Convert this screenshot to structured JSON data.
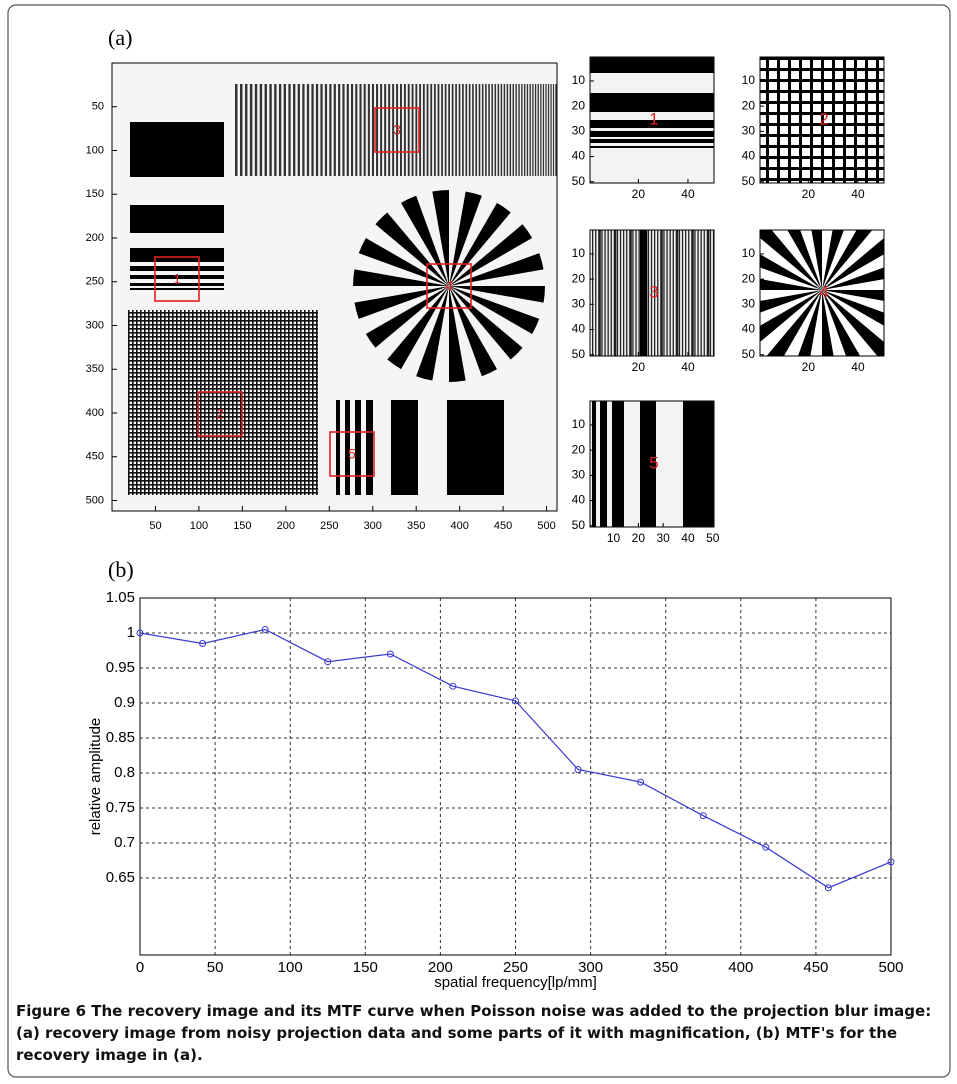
{
  "panel_a": {
    "label": "(a)",
    "main": {
      "xlim": [
        0,
        512
      ],
      "ylim": [
        0,
        512
      ],
      "xticks": [
        50,
        100,
        150,
        200,
        250,
        300,
        350,
        400,
        450,
        500
      ],
      "yticks": [
        50,
        100,
        150,
        200,
        250,
        300,
        350,
        400,
        450,
        500
      ],
      "boxes": [
        "1",
        "2",
        "3",
        "4",
        "5"
      ]
    },
    "insets": [
      {
        "label": "1",
        "xlim": [
          0.5,
          50.5
        ],
        "ylim": [
          0.5,
          50.5
        ],
        "xticks": [
          20,
          40
        ],
        "yticks": [
          10,
          20,
          30,
          40,
          50
        ]
      },
      {
        "label": "2",
        "xlim": [
          0.5,
          50.5
        ],
        "ylim": [
          0.5,
          50.5
        ],
        "xticks": [
          20,
          40
        ],
        "yticks": [
          10,
          20,
          30,
          40,
          50
        ]
      },
      {
        "label": "3",
        "xlim": [
          0.5,
          50.5
        ],
        "ylim": [
          0.5,
          50.5
        ],
        "xticks": [
          20,
          40
        ],
        "yticks": [
          10,
          20,
          30,
          40,
          50
        ]
      },
      {
        "label": "4",
        "xlim": [
          0.5,
          50.5
        ],
        "ylim": [
          0.5,
          50.5
        ],
        "xticks": [
          20,
          40
        ],
        "yticks": [
          10,
          20,
          30,
          40,
          50
        ]
      },
      {
        "label": "5",
        "xlim": [
          0.5,
          50.5
        ],
        "ylim": [
          0.5,
          50.5
        ],
        "xticks": [
          10,
          20,
          30,
          40,
          50
        ],
        "yticks": [
          10,
          20,
          30,
          40,
          50
        ]
      }
    ]
  },
  "chart_data": {
    "type": "line",
    "label": "(b)",
    "x_label": "spatial frequency[lp/mm]",
    "y_label": "relative amplitude",
    "x": [
      0,
      41.67,
      83.33,
      125,
      166.67,
      208.33,
      250,
      291.67,
      333.33,
      375,
      416.67,
      458.33,
      500
    ],
    "values": [
      1.0,
      0.985,
      1.005,
      0.959,
      0.97,
      0.924,
      0.903,
      0.805,
      0.787,
      0.739,
      0.694,
      0.636,
      0.673
    ],
    "color": "#3a3acf",
    "xlim": [
      0,
      500
    ],
    "ylim": [
      0.54,
      1.05
    ],
    "xticks": [
      0,
      50,
      100,
      150,
      200,
      250,
      300,
      350,
      400,
      450,
      500
    ],
    "yticks": [
      0.65,
      0.7,
      0.75,
      0.8,
      0.85,
      0.9,
      0.95,
      1,
      1.05
    ],
    "grid": true
  },
  "caption": "Figure 6 The recovery image and its MTF curve when Poisson noise was added to the projection blur image: (a) recovery image from noisy projection data and some parts of it with magnification, (b) MTF's for the recovery image in (a)."
}
